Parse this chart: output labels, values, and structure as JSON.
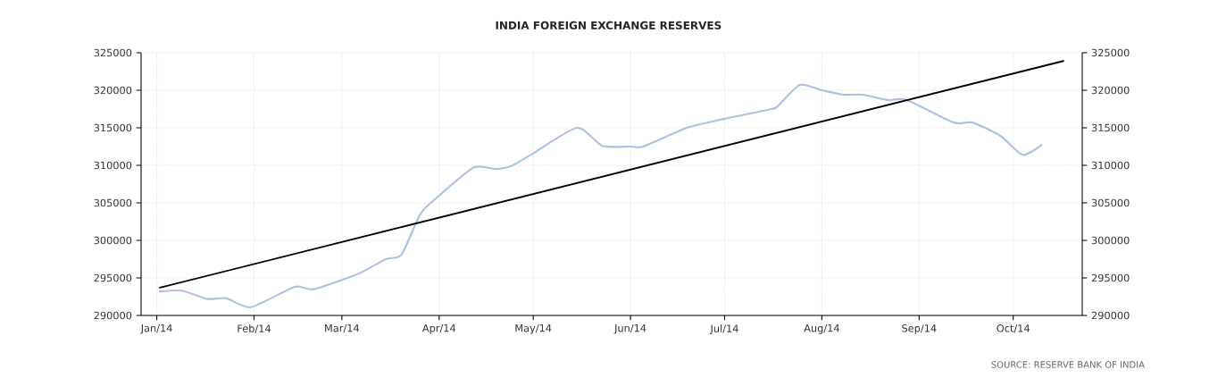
{
  "chart_data": {
    "type": "line",
    "title": "INDIA FOREIGN EXCHANGE RESERVES",
    "xlim": [
      "2013-12-27",
      "2014-10-23"
    ],
    "xticks": [
      {
        "value": "2014-01-01",
        "label": "Jan/14"
      },
      {
        "value": "2014-02-01",
        "label": "Feb/14"
      },
      {
        "value": "2014-03-01",
        "label": "Mar/14"
      },
      {
        "value": "2014-04-01",
        "label": "Apr/14"
      },
      {
        "value": "2014-05-01",
        "label": "May/14"
      },
      {
        "value": "2014-06-01",
        "label": "Jun/14"
      },
      {
        "value": "2014-07-01",
        "label": "Jul/14"
      },
      {
        "value": "2014-08-01",
        "label": "Aug/14"
      },
      {
        "value": "2014-09-01",
        "label": "Sep/14"
      },
      {
        "value": "2014-10-01",
        "label": "Oct/14"
      }
    ],
    "ylim": [
      290000,
      325000
    ],
    "yticks": [
      290000,
      295000,
      300000,
      305000,
      310000,
      315000,
      320000,
      325000
    ],
    "y2lim": [
      290000,
      325000
    ],
    "y2ticks": [
      290000,
      295000,
      300000,
      305000,
      310000,
      315000,
      320000,
      325000
    ],
    "grid": true,
    "series": [
      {
        "color": "#aec2e0",
        "x": [
          "2014-01-02",
          "2014-01-09",
          "2014-01-17",
          "2014-01-23",
          "2014-01-31",
          "2014-02-14",
          "2014-02-20",
          "2014-03-06",
          "2014-03-15",
          "2014-03-20",
          "2014-03-26",
          "2014-03-31",
          "2014-04-12",
          "2014-04-19",
          "2014-04-24",
          "2014-05-01",
          "2014-05-15",
          "2014-05-23",
          "2014-06-01",
          "2014-06-05",
          "2014-06-19",
          "2014-07-01",
          "2014-07-16",
          "2014-07-18",
          "2014-07-25",
          "2014-08-01",
          "2014-08-08",
          "2014-08-14",
          "2014-08-22",
          "2014-08-28",
          "2014-09-12",
          "2014-09-18",
          "2014-09-27",
          "2014-10-04",
          "2014-10-10"
        ],
        "values": [
          293200,
          293300,
          292200,
          292300,
          291100,
          293800,
          293500,
          295500,
          297500,
          298100,
          303500,
          305600,
          309700,
          309500,
          309900,
          311600,
          315000,
          312600,
          312500,
          312500,
          315000,
          316200,
          317500,
          317900,
          320700,
          320000,
          319400,
          319400,
          318700,
          318700,
          315700,
          315700,
          313900,
          311400,
          312700
        ]
      },
      {
        "color": "#000000",
        "x": [
          "2014-01-02",
          "2014-10-17"
        ],
        "values": [
          293700,
          323900
        ]
      }
    ],
    "annotations": [
      "SOURCE: RESERVE BANK OF INDIA"
    ]
  }
}
